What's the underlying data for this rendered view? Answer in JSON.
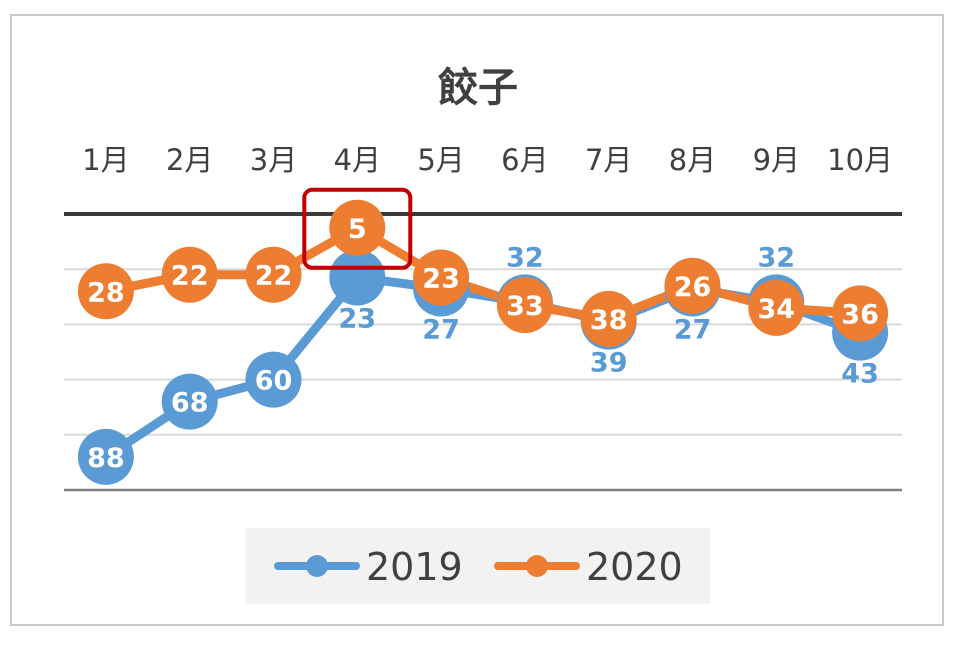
{
  "chart_data": {
    "type": "line",
    "title": "餃子",
    "categories": [
      "1月",
      "2月",
      "3月",
      "4月",
      "5月",
      "6月",
      "7月",
      "8月",
      "9月",
      "10月"
    ],
    "y_axis": "reversed, no tick labels",
    "ylim": [
      0,
      100
    ],
    "grid": true,
    "legend_position": "bottom",
    "series": [
      {
        "name": "2019",
        "color": "#5b9bd5",
        "values": [
          88,
          68,
          60,
          23,
          27,
          32,
          39,
          27,
          32,
          43
        ]
      },
      {
        "name": "2020",
        "color": "#ed7d31",
        "values": [
          28,
          22,
          22,
          5,
          23,
          33,
          38,
          26,
          34,
          36
        ]
      }
    ],
    "highlight": {
      "series": "2020",
      "category": "4月",
      "color": "#c00000"
    }
  }
}
